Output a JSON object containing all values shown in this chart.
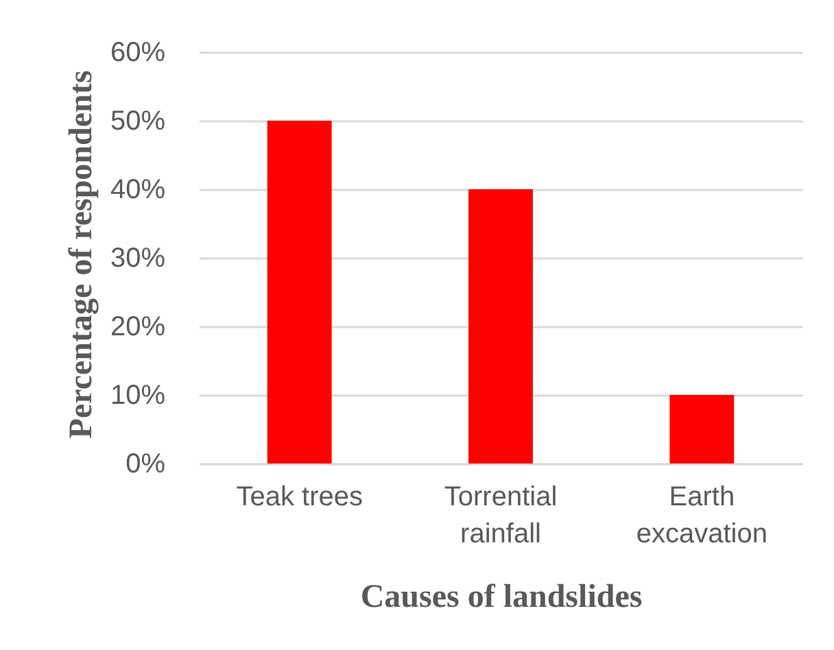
{
  "chart_data": {
    "type": "bar",
    "categories": [
      "Teak trees",
      "Torrential rainfall",
      "Earth excavation"
    ],
    "values": [
      50,
      40,
      10
    ],
    "color": "#ff0000",
    "xlabel": "Causes of landslides",
    "ylabel": "Percentage of respondents",
    "ylim": [
      0,
      60
    ],
    "yticks": [
      {
        "value": 0,
        "label": "0%"
      },
      {
        "value": 10,
        "label": "10%"
      },
      {
        "value": 20,
        "label": "20%"
      },
      {
        "value": 30,
        "label": "30%"
      },
      {
        "value": 40,
        "label": "40%"
      },
      {
        "value": 50,
        "label": "50%"
      },
      {
        "value": 60,
        "label": "60%"
      }
    ],
    "grid": "y"
  }
}
